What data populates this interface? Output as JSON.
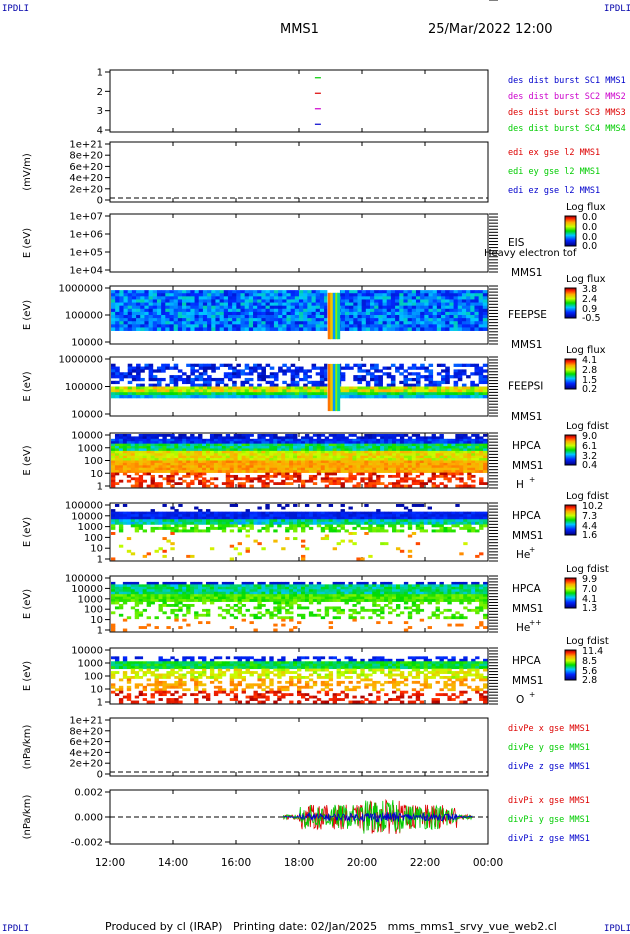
{
  "header": {
    "corner_left_top": "IPDLI",
    "corner_right_top": "IPDLI",
    "corner_left_bottom": "IPDLI",
    "corner_right_bottom": "IPDLI",
    "mission": "MMS1",
    "datetime": "25/Mar/2022 12:00"
  },
  "footer": {
    "text": "Produced by cl (IRAP)   Printing date: 02/Jan/2025   mms_mms1_srvy_vue_web2.cl"
  },
  "colors": {
    "red": "#dd0000",
    "green": "#00cc00",
    "blue": "#0000cc",
    "magenta": "#cc00cc",
    "axis": "#000000"
  },
  "chart_data": [
    {
      "type": "scatter",
      "panel": "burst",
      "ylabel": "",
      "yticks": [
        "1",
        "2",
        "3",
        "4"
      ],
      "ylim": [
        0.5,
        4.5
      ],
      "legend": [
        {
          "name": "des dist burst SC1 MMS1",
          "color": "#0000cc"
        },
        {
          "name": "des dist burst SC2 MMS2",
          "color": "#cc00cc"
        },
        {
          "name": "des dist burst SC3 MMS3",
          "color": "#dd0000"
        },
        {
          "name": "des dist burst SC4 MMS4",
          "color": "#00cc00"
        }
      ],
      "series": [
        {
          "name": "des dist burst SC1 MMS1",
          "x": [
            18.6
          ],
          "y": [
            1
          ]
        },
        {
          "name": "des dist burst SC2 MMS2",
          "x": [
            18.6
          ],
          "y": [
            2
          ]
        },
        {
          "name": "des dist burst SC3 MMS3",
          "x": [
            18.6
          ],
          "y": [
            3
          ]
        },
        {
          "name": "des dist burst SC4 MMS4",
          "x": [
            18.6
          ],
          "y": [
            4
          ]
        }
      ]
    },
    {
      "type": "line",
      "panel": "edi",
      "ylabel": "(mV/m)",
      "yticks": [
        "1e+21",
        "8e+20",
        "6e+20",
        "4e+20",
        "2e+20",
        "0"
      ],
      "legend": [
        {
          "name": "edi ex gse l2 MMS1",
          "color": "#dd0000"
        },
        {
          "name": "edi ey gse l2 MMS1",
          "color": "#00cc00"
        },
        {
          "name": "edi ez gse l2 MMS1",
          "color": "#0000cc"
        }
      ],
      "zero_line": true
    },
    {
      "type": "heatmap",
      "panel": "eis",
      "ylabel": "E (eV)",
      "yticks": [
        "1e+07",
        "1e+06",
        "1e+05",
        "1e+04"
      ],
      "side_labels": [
        "EIS",
        "MMS1"
      ],
      "overlap_text": "Heavy electron tof",
      "colorbar_title": "Log flux",
      "colorbar_ticks": [
        "0.0",
        "0.0",
        "0.0",
        "0.0"
      ],
      "coverage": "none"
    },
    {
      "type": "heatmap",
      "panel": "feepse",
      "ylabel": "E (eV)",
      "yticks": [
        "1000000",
        "100000",
        "10000"
      ],
      "side_labels": [
        "FEEPSE",
        "MMS1"
      ],
      "colorbar_title": "Log flux",
      "colorbar_ticks": [
        "3.8",
        "2.4",
        "0.9",
        "-0.5"
      ],
      "coverage": "full",
      "event_window": [
        18.9,
        19.3
      ]
    },
    {
      "type": "heatmap",
      "panel": "feepsi",
      "ylabel": "E (eV)",
      "yticks": [
        "1000000",
        "100000",
        "10000"
      ],
      "side_labels": [
        "FEEPSI",
        "MMS1"
      ],
      "colorbar_title": "Log flux",
      "colorbar_ticks": [
        "4.1",
        "2.8",
        "1.5",
        "0.2"
      ],
      "coverage": "full",
      "event_window": [
        18.9,
        19.3
      ]
    },
    {
      "type": "heatmap",
      "panel": "hpca_h",
      "ylabel": "E (eV)",
      "yticks": [
        "10000",
        "1000",
        "100",
        "10",
        "1"
      ],
      "side_labels": [
        "HPCA",
        "MMS1",
        "H",
        "+"
      ],
      "colorbar_title": "Log fdist",
      "colorbar_ticks": [
        "9.0",
        "6.1",
        "3.2",
        "0.4"
      ],
      "coverage": "full"
    },
    {
      "type": "heatmap",
      "panel": "hpca_he",
      "ylabel": "E (eV)",
      "yticks": [
        "100000",
        "10000",
        "1000",
        "100",
        "10",
        "1"
      ],
      "side_labels": [
        "HPCA",
        "MMS1",
        "He",
        "+"
      ],
      "colorbar_title": "Log fdist",
      "colorbar_ticks": [
        "10.2",
        "7.3",
        "4.4",
        "1.6"
      ],
      "coverage": "full"
    },
    {
      "type": "heatmap",
      "panel": "hpca_hepp",
      "ylabel": "E (eV)",
      "yticks": [
        "100000",
        "10000",
        "1000",
        "100",
        "10",
        "1"
      ],
      "side_labels": [
        "HPCA",
        "MMS1",
        "He",
        "++"
      ],
      "colorbar_title": "Log fdist",
      "colorbar_ticks": [
        "9.9",
        "7.0",
        "4.1",
        "1.3"
      ],
      "coverage": "full"
    },
    {
      "type": "heatmap",
      "panel": "hpca_o",
      "ylabel": "E (eV)",
      "yticks": [
        "10000",
        "1000",
        "100",
        "10",
        "1"
      ],
      "side_labels": [
        "HPCA",
        "MMS1",
        "O",
        "+"
      ],
      "colorbar_title": "Log fdist",
      "colorbar_ticks": [
        "11.4",
        "8.5",
        "5.6",
        "2.8"
      ],
      "coverage": "full"
    },
    {
      "type": "line",
      "panel": "divpe",
      "ylabel": "(nPa/km)",
      "yticks": [
        "1e+21",
        "8e+20",
        "6e+20",
        "4e+20",
        "2e+20",
        "0"
      ],
      "legend": [
        {
          "name": "divPe x gse MMS1",
          "color": "#dd0000"
        },
        {
          "name": "divPe y gse MMS1",
          "color": "#00cc00"
        },
        {
          "name": "divPe z gse MMS1",
          "color": "#0000cc"
        }
      ],
      "zero_line": true
    },
    {
      "type": "line",
      "panel": "divpi",
      "ylabel": "(nPa/km)",
      "yticks": [
        "0.002",
        "0.000",
        "-0.002"
      ],
      "ylim": [
        -0.0035,
        0.0035
      ],
      "legend": [
        {
          "name": "divPi x gse MMS1",
          "color": "#dd0000"
        },
        {
          "name": "divPi y gse MMS1",
          "color": "#00cc00"
        },
        {
          "name": "divPi z gse MMS1",
          "color": "#0000cc"
        }
      ],
      "zero_line": true,
      "data_window": [
        17.5,
        23.5
      ]
    }
  ],
  "xaxis": {
    "range_hours": [
      12,
      24
    ],
    "tick_labels": [
      "12:00",
      "14:00",
      "16:00",
      "18:00",
      "20:00",
      "22:00",
      "00:00"
    ]
  }
}
